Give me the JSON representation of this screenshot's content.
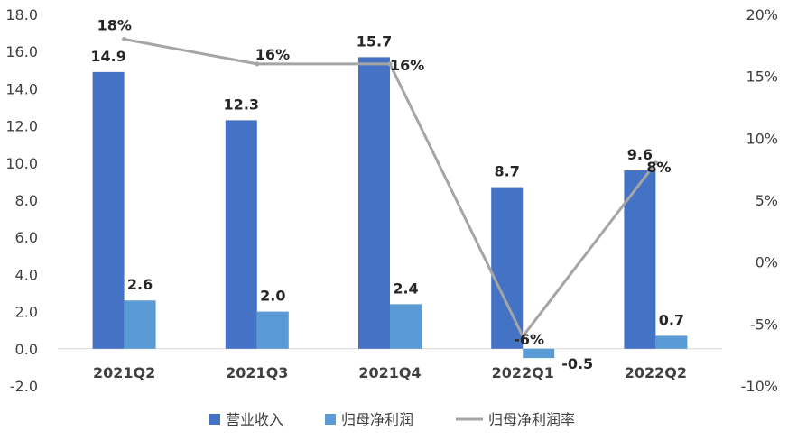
{
  "chart_data": {
    "type": "bar",
    "categories": [
      "2021Q2",
      "2021Q3",
      "2021Q4",
      "2022Q1",
      "2022Q2"
    ],
    "series": [
      {
        "name": "营业收入",
        "type": "bar",
        "axis": "left",
        "values": [
          14.9,
          12.3,
          15.7,
          8.7,
          9.6
        ],
        "labels": [
          "14.9",
          "12.3",
          "15.7",
          "8.7",
          "9.6"
        ]
      },
      {
        "name": "归母净利润",
        "type": "bar",
        "axis": "left",
        "values": [
          2.6,
          2.0,
          2.4,
          -0.5,
          0.7
        ],
        "labels": [
          "2.6",
          "2.0",
          "2.4",
          "-0.5",
          "0.7"
        ]
      },
      {
        "name": "归母净利润率",
        "type": "line",
        "axis": "right",
        "values": [
          18,
          16,
          16,
          -6,
          8
        ],
        "labels": [
          "18%",
          "16%",
          "16%",
          "-6%",
          "8%"
        ]
      }
    ],
    "ylim": [
      -2,
      18
    ],
    "yticks": [
      "-2.0",
      "0.0",
      "2.0",
      "4.0",
      "6.0",
      "8.0",
      "10.0",
      "12.0",
      "14.0",
      "16.0",
      "18.0"
    ],
    "y2lim": [
      -10,
      20
    ],
    "y2ticks": [
      "-10%",
      "-5%",
      "0%",
      "5%",
      "10%",
      "15%",
      "20%"
    ],
    "legend": "bottom",
    "grid": false,
    "colors": {
      "revenue": "#4472C4",
      "profit": "#5B9BD5",
      "margin": "#A5A5A5"
    }
  }
}
